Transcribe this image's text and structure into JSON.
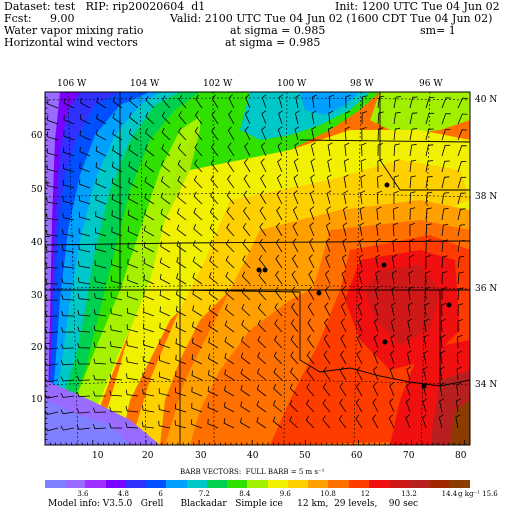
{
  "header": {
    "dataset": "Dataset: test   RIP: rip20020604  d1",
    "init": "Init: 1200 UTC Tue 04 Jun 02",
    "fcst_label": "Fcst:",
    "fcst_value": "9.00",
    "valid": "Valid: 2100 UTC Tue 04 Jun 02 (1600 CDT Tue 04 Jun 02)",
    "field1": "Water vapor mixing ratio",
    "field1_level": "at sigma = 0.985",
    "field1_sm": "sm= 1",
    "field2": "Horizontal wind vectors",
    "field2_level": "at sigma = 0.985"
  },
  "map": {
    "lon_labels": [
      "106 W",
      "104 W",
      "102 W",
      "100 W",
      "98 W",
      "96 W"
    ],
    "lat_labels": [
      "40 N",
      "38 N",
      "36 N",
      "34 N"
    ],
    "x_ticks": [
      "10",
      "20",
      "30",
      "40",
      "50",
      "60",
      "70",
      "80"
    ],
    "y_ticks": [
      "60",
      "50",
      "40",
      "30",
      "20",
      "10"
    ],
    "x_range": [
      1,
      81
    ],
    "y_range": [
      1,
      67
    ]
  },
  "colorbar": {
    "title": "BARB VECTORS:  FULL BARB = 5 m s⁻¹",
    "tick_labels": [
      "3.6",
      "4.8",
      "6",
      "7.2",
      "8.4",
      "9.6",
      "10.8",
      "12",
      "13.2",
      "14.4",
      "15.6"
    ],
    "unit": "g kg⁻¹",
    "colors": [
      "#7f7fff",
      "#9a6bff",
      "#a030ff",
      "#7a00ff",
      "#3030ff",
      "#0050ff",
      "#00a0ff",
      "#00c8c8",
      "#00d050",
      "#30e000",
      "#a0f000",
      "#f0f000",
      "#ffd000",
      "#ffa000",
      "#ff7000",
      "#ff3c00",
      "#f01010",
      "#d01818",
      "#b82020",
      "#a02800",
      "#8c3c00"
    ]
  },
  "footer": {
    "model_info": "Model info: V3.5.0   Grell      Blackadar   Simple ice     12 km,  29 levels,    90 sec"
  }
}
